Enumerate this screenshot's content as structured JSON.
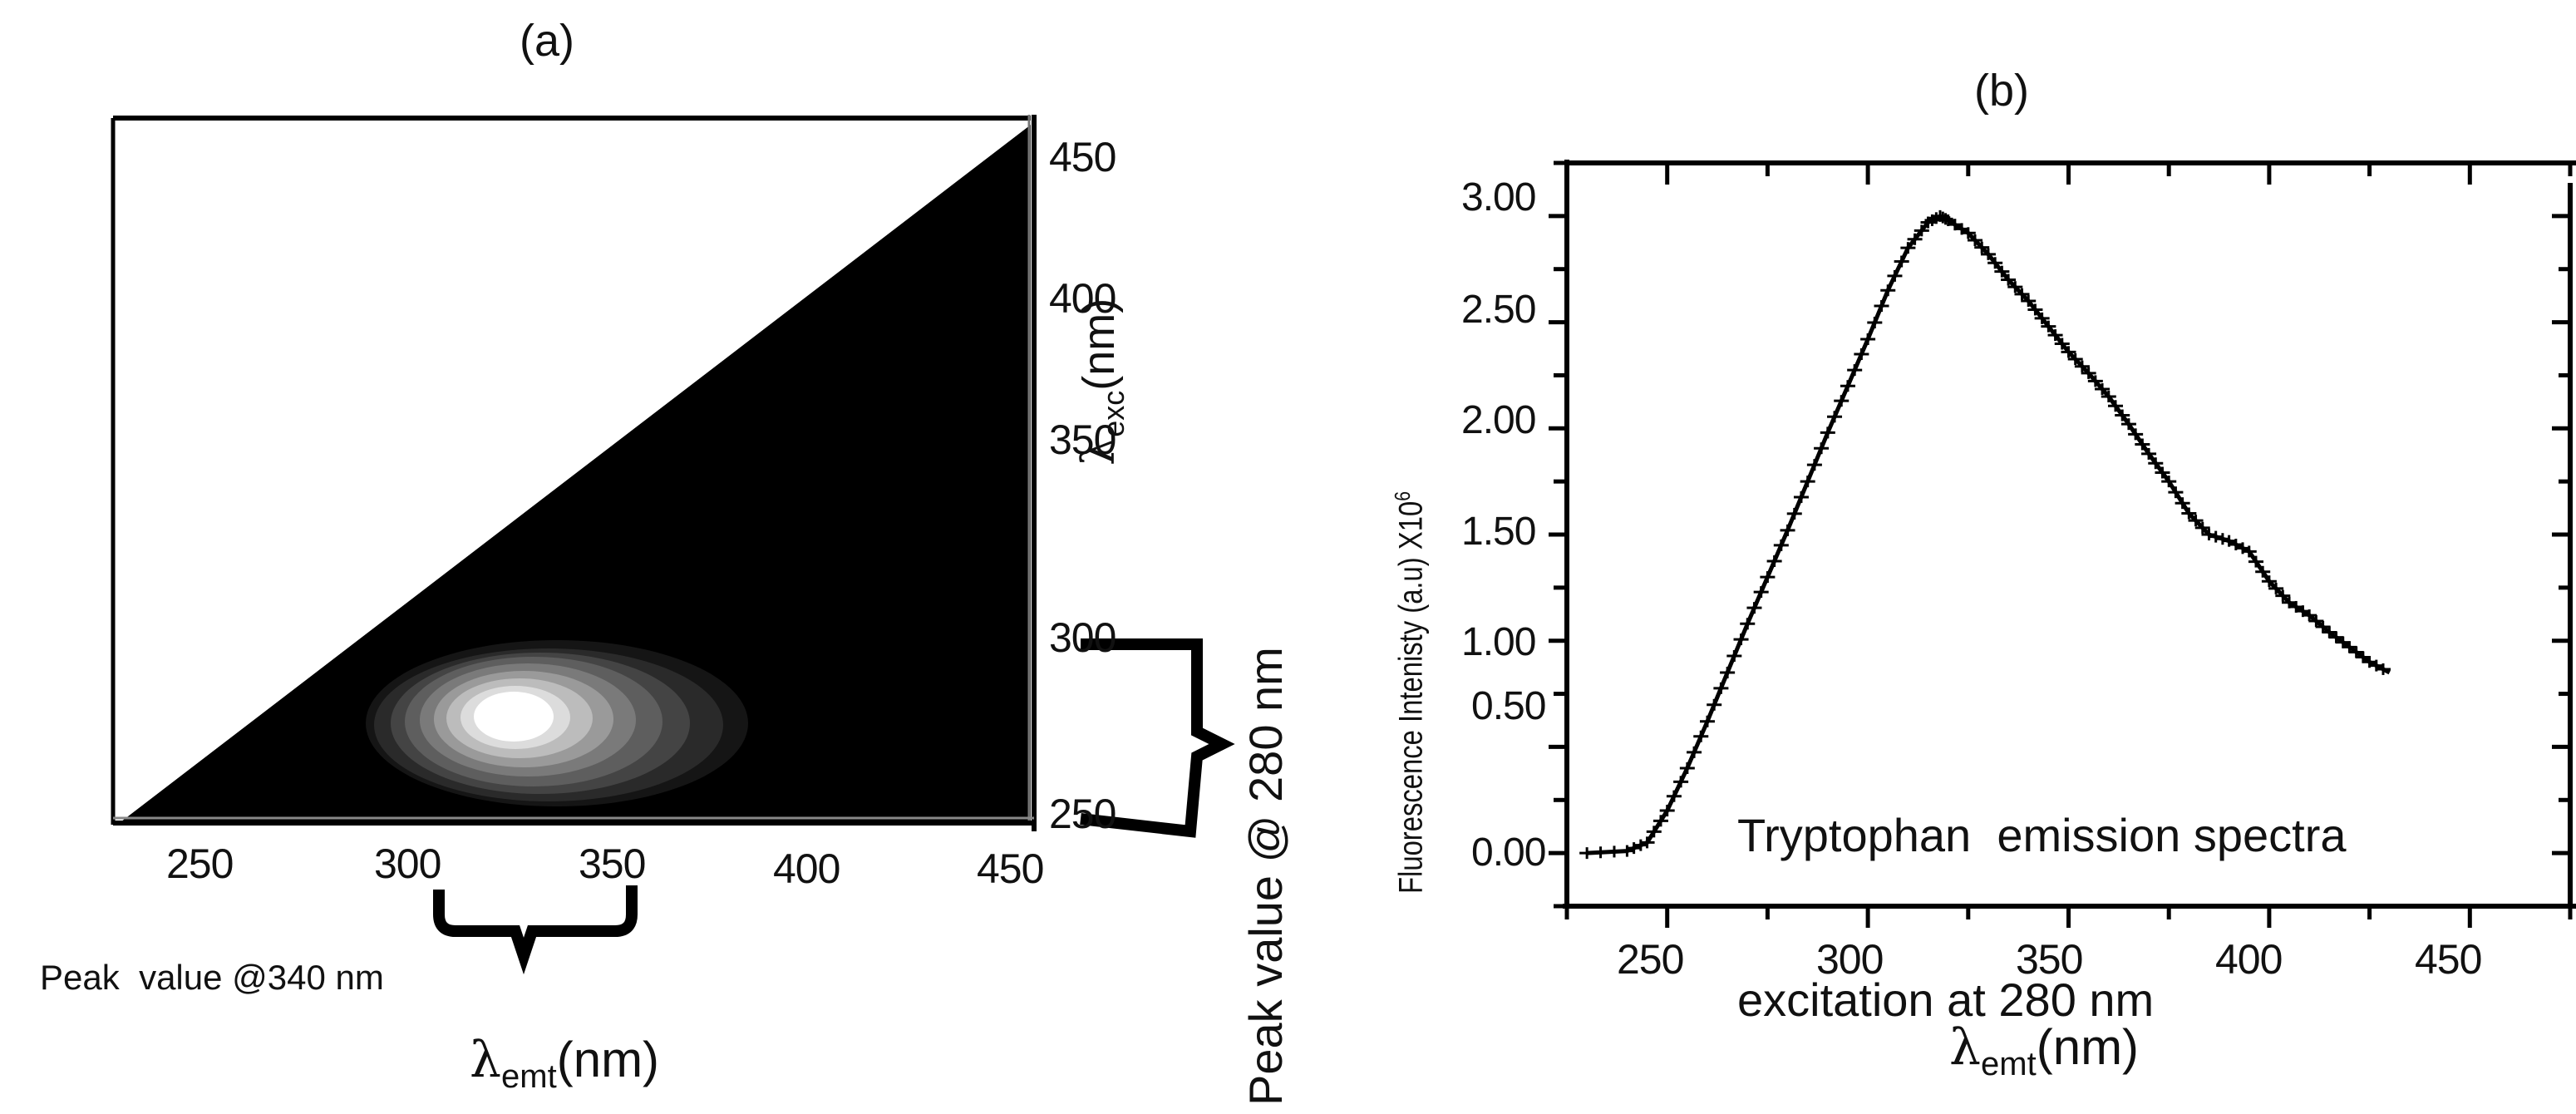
{
  "figure": {
    "panel_a": {
      "label": "(a)",
      "x_ticks": [
        "250",
        "300",
        "350",
        "400",
        "450"
      ],
      "y_ticks": [
        "450",
        "400",
        "350",
        "300",
        "250"
      ],
      "x_axis_label_symbol": "λ",
      "x_axis_label_sub": "emt",
      "x_axis_label_unit": "(nm)",
      "y_axis_label_symbol": "λ",
      "y_axis_label_sub": "exc",
      "y_axis_label_unit": "(nm)",
      "annotation_x": "Peak  value @340 nm",
      "annotation_y": "Peak value @ 280 nm"
    },
    "panel_b": {
      "label": "(b)",
      "x_ticks": [
        "250",
        "300",
        "350",
        "400",
        "450"
      ],
      "y_ticks": [
        "3.00",
        "2.50",
        "2.00",
        "1.50",
        "1.00",
        "0.50",
        "0.00"
      ],
      "x_axis_label_symbol": "λ",
      "x_axis_label_sub": "emt",
      "x_axis_label_unit": "(nm)",
      "y_axis_label": "Fluorescence Intenisty (a.u) X10",
      "y_axis_label_exp": "6",
      "annotation_line1": "Tryptophan  emission spectra",
      "annotation_line2": "excitation at 280 nm"
    }
  },
  "colors": {
    "background": "#ffffff",
    "axis": "#000000",
    "heatmap_background": "#000000",
    "peak": "#ffffff"
  },
  "chart_data": [
    {
      "type": "heatmap",
      "title": "(a)",
      "xlabel": "λemt (nm)",
      "ylabel": "λexc (nm)",
      "xlim": [
        228,
        450
      ],
      "ylim": [
        240,
        460
      ],
      "x_ticks": [
        250,
        300,
        350,
        400,
        450
      ],
      "y_ticks": [
        250,
        300,
        350,
        400,
        450
      ],
      "description": "Excitation-emission matrix contour map; upper-left triangle (emission < excitation) blank/white, remainder black with grayscale concentric contours centered near emission 340 nm, excitation 280 nm.",
      "peak": {
        "emission_nm": 340,
        "excitation_nm": 280
      },
      "contour_levels": 8,
      "annotations": [
        "Peak  value @340 nm",
        "Peak value @ 280 nm"
      ]
    },
    {
      "type": "line",
      "title": "(b)",
      "xlabel": "λemt (nm)",
      "ylabel": "Fluorescence Intenisty (a.u) X10^6",
      "xlim": [
        225,
        475
      ],
      "ylim": [
        -0.25,
        3.25
      ],
      "x_ticks": [
        250,
        300,
        350,
        400,
        450
      ],
      "y_ticks": [
        0.0,
        0.5,
        1.0,
        1.5,
        2.0,
        2.5,
        3.0
      ],
      "grid": false,
      "marker": "+",
      "series": [
        {
          "name": "Tryptophan emission spectra excitation at 280 nm",
          "x": [
            230,
            240,
            245,
            250,
            255,
            260,
            265,
            270,
            275,
            280,
            285,
            290,
            295,
            300,
            305,
            310,
            315,
            318,
            320,
            325,
            330,
            335,
            340,
            345,
            350,
            355,
            360,
            365,
            370,
            375,
            380,
            385,
            390,
            395,
            400,
            405,
            410,
            415,
            420,
            425,
            430
          ],
          "y": [
            0.0,
            0.01,
            0.05,
            0.2,
            0.4,
            0.62,
            0.85,
            1.08,
            1.3,
            1.52,
            1.75,
            1.98,
            2.2,
            2.42,
            2.65,
            2.85,
            2.97,
            3.0,
            2.98,
            2.92,
            2.82,
            2.7,
            2.6,
            2.48,
            2.36,
            2.26,
            2.15,
            2.02,
            1.88,
            1.75,
            1.6,
            1.5,
            1.47,
            1.42,
            1.28,
            1.18,
            1.12,
            1.04,
            0.97,
            0.9,
            0.85
          ]
        }
      ],
      "annotations": [
        "Tryptophan  emission spectra",
        "excitation at 280 nm"
      ]
    }
  ]
}
